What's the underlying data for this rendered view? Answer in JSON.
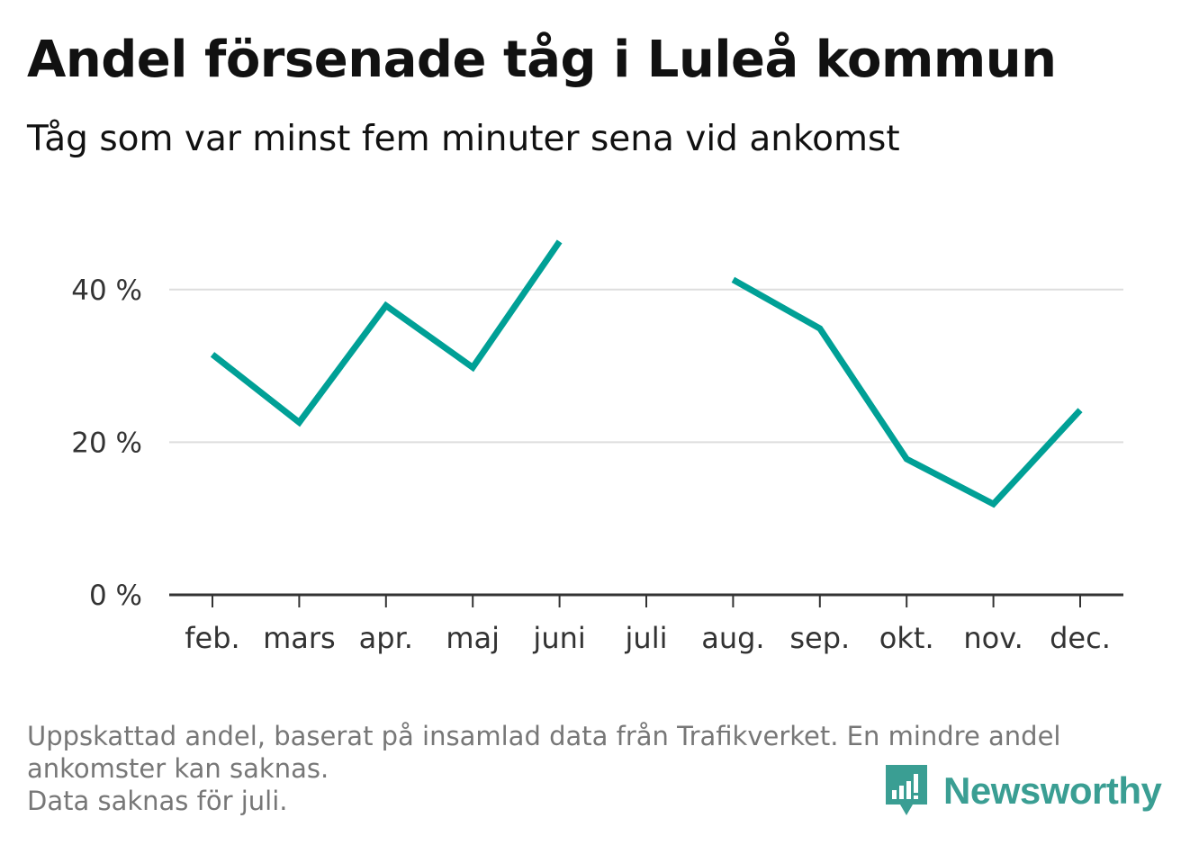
{
  "chart_data": {
    "type": "line",
    "title": "Andel försenade tåg i Luleå kommun",
    "subtitle": "Tåg som var minst fem minuter sena vid ankomst",
    "categories": [
      "feb.",
      "mars",
      "apr.",
      "maj",
      "juni",
      "juli",
      "aug.",
      "sep.",
      "okt.",
      "nov.",
      "dec."
    ],
    "series": [
      {
        "values": [
          31.5,
          22.6,
          37.9,
          29.8,
          46.3,
          null,
          41.3,
          34.9,
          17.8,
          11.9,
          24.2
        ]
      }
    ],
    "ylim": [
      0,
      50
    ],
    "yticks": [
      0,
      20,
      40
    ],
    "ytick_labels": [
      "0 %",
      "20 %",
      "40 %"
    ],
    "xlabel": "",
    "ylabel": "",
    "grid": true,
    "line_color": "#00a096",
    "grid_color": "#dddddd",
    "axis_color": "#333333"
  },
  "footnote": {
    "line1": "Uppskattad andel, baserat på insamlad data från Trafikverket. En mindre andel",
    "line2": "ankomster kan saknas.",
    "line3": "Data saknas för juli."
  },
  "brand": {
    "name": "Newsworthy",
    "color": "#3a9e93",
    "icon": "newsworthy-logo-icon"
  }
}
